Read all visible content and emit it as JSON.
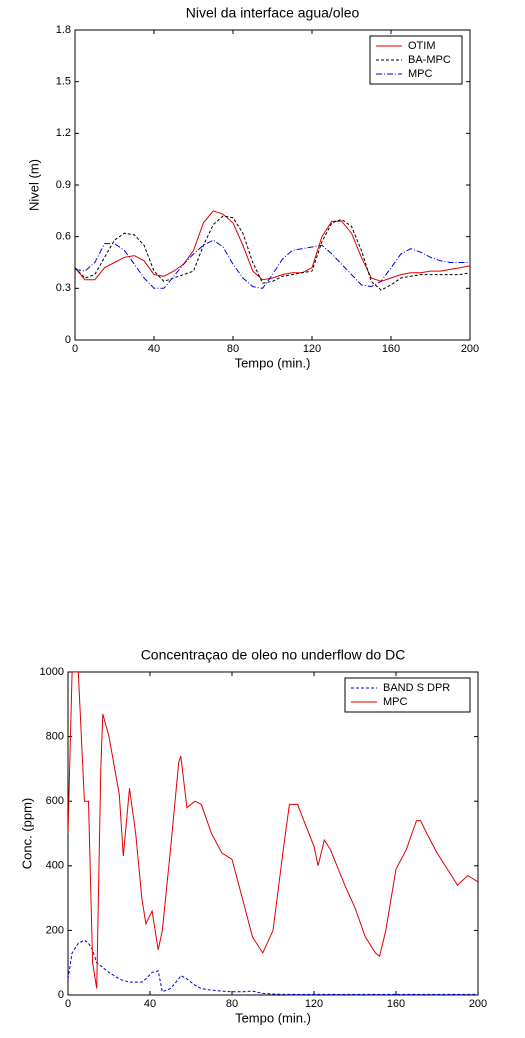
{
  "chart_data": [
    {
      "type": "line",
      "title": "Nivel da interface agua/oleo",
      "x_label": "Tempo (min.)",
      "y_label": "Nivel (m)",
      "xlim": [
        0,
        200
      ],
      "ylim": [
        0,
        1.8
      ],
      "xticks": [
        0,
        40,
        80,
        120,
        160,
        200
      ],
      "yticks": [
        0,
        0.3,
        0.6,
        0.9,
        1.2,
        1.5,
        1.8
      ],
      "legend": "upper right",
      "x": [
        0,
        5,
        10,
        15,
        20,
        25,
        30,
        35,
        40,
        45,
        50,
        55,
        60,
        65,
        70,
        75,
        80,
        85,
        90,
        95,
        100,
        105,
        110,
        115,
        120,
        125,
        130,
        135,
        140,
        145,
        150,
        155,
        160,
        165,
        170,
        175,
        180,
        185,
        190,
        195,
        200
      ],
      "series": [
        {
          "name": "OTIM",
          "color": "#e00000",
          "linestyle": "solid",
          "values": [
            0.42,
            0.35,
            0.35,
            0.42,
            0.45,
            0.48,
            0.49,
            0.46,
            0.38,
            0.37,
            0.4,
            0.44,
            0.52,
            0.68,
            0.75,
            0.73,
            0.68,
            0.55,
            0.4,
            0.35,
            0.36,
            0.38,
            0.39,
            0.39,
            0.42,
            0.6,
            0.69,
            0.69,
            0.62,
            0.48,
            0.36,
            0.34,
            0.36,
            0.38,
            0.39,
            0.39,
            0.4,
            0.4,
            0.41,
            0.42,
            0.43
          ]
        },
        {
          "name": "BA-MPC",
          "color": "#000000",
          "linestyle": "dashed",
          "values": [
            0.42,
            0.36,
            0.38,
            0.48,
            0.58,
            0.62,
            0.61,
            0.55,
            0.4,
            0.34,
            0.36,
            0.38,
            0.4,
            0.55,
            0.67,
            0.72,
            0.71,
            0.62,
            0.45,
            0.33,
            0.34,
            0.37,
            0.38,
            0.39,
            0.4,
            0.57,
            0.68,
            0.7,
            0.66,
            0.52,
            0.34,
            0.29,
            0.32,
            0.36,
            0.37,
            0.38,
            0.38,
            0.38,
            0.38,
            0.38,
            0.39
          ]
        },
        {
          "name": "MPC",
          "color": "#0000e0",
          "linestyle": "dashdot",
          "values": [
            0.41,
            0.4,
            0.45,
            0.56,
            0.56,
            0.52,
            0.44,
            0.36,
            0.3,
            0.3,
            0.37,
            0.44,
            0.5,
            0.55,
            0.58,
            0.54,
            0.44,
            0.36,
            0.31,
            0.3,
            0.38,
            0.47,
            0.52,
            0.53,
            0.54,
            0.55,
            0.5,
            0.44,
            0.38,
            0.32,
            0.31,
            0.34,
            0.42,
            0.5,
            0.53,
            0.51,
            0.48,
            0.46,
            0.45,
            0.45,
            0.45
          ]
        }
      ]
    },
    {
      "type": "line",
      "title": "Concentraçao de oleo no underflow do DC",
      "x_label": "Tempo (min.)",
      "y_label": "Conc. (ppm)",
      "xlim": [
        0,
        200
      ],
      "ylim": [
        0,
        1000
      ],
      "xticks": [
        0,
        40,
        80,
        120,
        160,
        200
      ],
      "yticks": [
        0,
        200,
        400,
        600,
        800,
        1000
      ],
      "legend": "upper right",
      "x": [
        0,
        2,
        5,
        8,
        10,
        12,
        14,
        16,
        17,
        20,
        25,
        27,
        30,
        33,
        36,
        38,
        41,
        44,
        46,
        50,
        54,
        55,
        58,
        62,
        65,
        70,
        75,
        80,
        85,
        90,
        95,
        100,
        105,
        108,
        112,
        115,
        120,
        122,
        125,
        128,
        135,
        140,
        145,
        150,
        152,
        155,
        160,
        165,
        170,
        172,
        175,
        180,
        185,
        190,
        195,
        200
      ],
      "series": [
        {
          "name": "BAND S DPR",
          "color": "#0000e0",
          "linestyle": "dashed",
          "values": [
            50,
            130,
            160,
            170,
            160,
            140,
            100,
            90,
            85,
            70,
            50,
            45,
            40,
            40,
            40,
            50,
            70,
            75,
            10,
            20,
            50,
            60,
            50,
            30,
            20,
            15,
            12,
            10,
            10,
            12,
            5,
            3,
            2,
            2,
            2,
            2,
            2,
            2,
            2,
            2,
            2,
            2,
            2,
            2,
            2,
            2,
            2,
            2,
            2,
            2,
            2,
            2,
            2,
            2,
            2,
            2
          ]
        },
        {
          "name": "MPC",
          "color": "#e00000",
          "linestyle": "solid",
          "values": [
            500,
            1000,
            1000,
            600,
            600,
            100,
            20,
            700,
            870,
            800,
            620,
            430,
            640,
            500,
            300,
            220,
            260,
            140,
            200,
            450,
            720,
            740,
            580,
            600,
            590,
            500,
            440,
            420,
            300,
            180,
            130,
            200,
            450,
            590,
            590,
            540,
            460,
            400,
            480,
            450,
            340,
            270,
            180,
            130,
            120,
            200,
            390,
            450,
            540,
            540,
            500,
            440,
            390,
            340,
            370,
            350
          ]
        }
      ]
    }
  ]
}
